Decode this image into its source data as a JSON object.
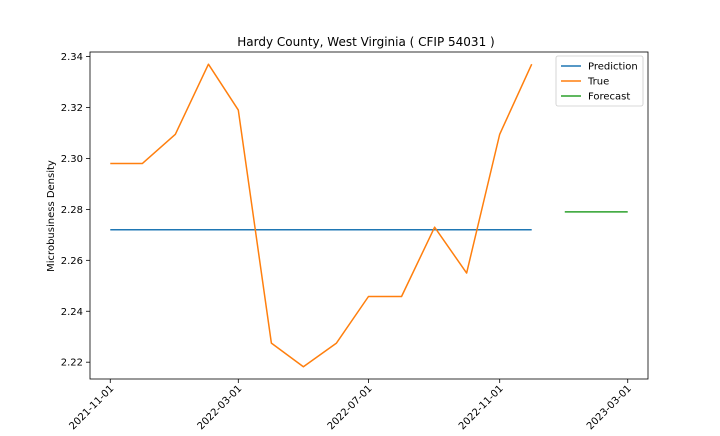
{
  "chart_data": {
    "type": "line",
    "title": "Hardy County, West Virginia ( CFIP 54031 )",
    "xlabel": "",
    "ylabel": "Microbusiness Density",
    "x_range": [
      "2021-10-13",
      "2023-03-20"
    ],
    "ylim": [
      2.2134,
      2.3418
    ],
    "x_ticks": [
      "2021-11-01",
      "2022-03-01",
      "2022-07-01",
      "2022-11-01",
      "2023-03-01"
    ],
    "y_ticks": [
      "2.22",
      "2.24",
      "2.26",
      "2.28",
      "2.30",
      "2.32",
      "2.34"
    ],
    "grid": false,
    "legend_position": "top-right",
    "series": [
      {
        "name": "Prediction",
        "color": "#1f77b4",
        "points": [
          {
            "x": "2021-11-01",
            "y": 2.272
          },
          {
            "x": "2022-12-01",
            "y": 2.272
          }
        ]
      },
      {
        "name": "True",
        "color": "#ff7f0e",
        "points": [
          {
            "x": "2021-11-01",
            "y": 2.298
          },
          {
            "x": "2021-12-01",
            "y": 2.298
          },
          {
            "x": "2022-01-01",
            "y": 2.3095
          },
          {
            "x": "2022-02-01",
            "y": 2.337
          },
          {
            "x": "2022-03-01",
            "y": 2.319
          },
          {
            "x": "2022-04-01",
            "y": 2.2275
          },
          {
            "x": "2022-05-01",
            "y": 2.2182
          },
          {
            "x": "2022-06-01",
            "y": 2.2275
          },
          {
            "x": "2022-07-01",
            "y": 2.2458
          },
          {
            "x": "2022-08-01",
            "y": 2.2458
          },
          {
            "x": "2022-09-01",
            "y": 2.273
          },
          {
            "x": "2022-10-01",
            "y": 2.255
          },
          {
            "x": "2022-11-01",
            "y": 2.3095
          },
          {
            "x": "2022-12-01",
            "y": 2.337
          }
        ]
      },
      {
        "name": "Forecast",
        "color": "#2ca02c",
        "points": [
          {
            "x": "2023-01-01",
            "y": 2.279
          },
          {
            "x": "2023-03-01",
            "y": 2.279
          }
        ]
      }
    ]
  }
}
